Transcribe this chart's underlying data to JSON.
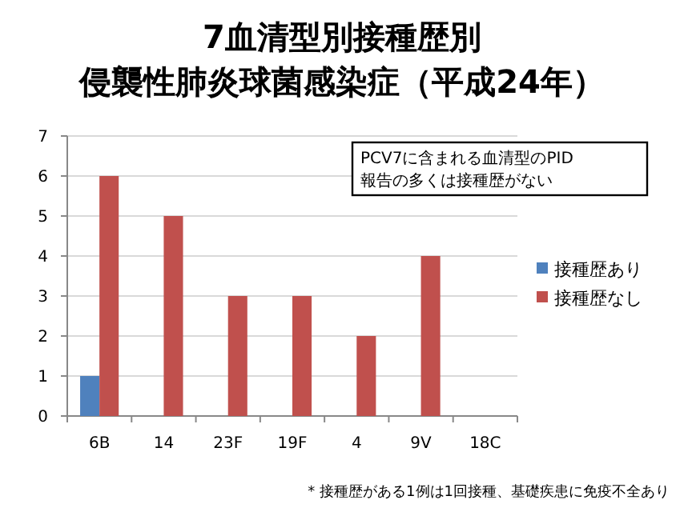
{
  "chart_data": {
    "type": "bar",
    "title": "7血清型別接種歴別",
    "subtitle": "侵襲性肺炎球菌感染症（平成24年）",
    "categories": [
      "6B",
      "14",
      "23F",
      "19F",
      "4",
      "9V",
      "18C"
    ],
    "series": [
      {
        "name": "接種歴あり",
        "color": "#4f81bd",
        "values": [
          1,
          0,
          0,
          0,
          0,
          0,
          0
        ]
      },
      {
        "name": "接種歴なし",
        "color": "#c0504d",
        "values": [
          6,
          5,
          3,
          3,
          2,
          4,
          0
        ]
      }
    ],
    "ylim": [
      0,
      7
    ],
    "yticks": [
      0,
      1,
      2,
      3,
      4,
      5,
      6,
      7
    ],
    "grid": "y",
    "legend": "right",
    "annotations": [
      "PCV7に含まれる血清型のPID",
      "報告の多くは接種歴がない",
      "* 接種歴がある1例は1回接種、基礎疾患に免疫不全あり"
    ]
  }
}
